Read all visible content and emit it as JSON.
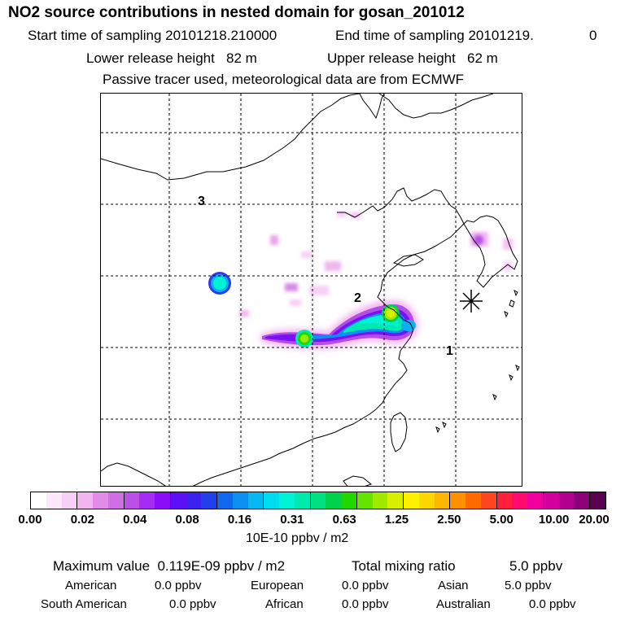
{
  "header": {
    "title": "NO2 source contributions in nested domain for gosan_201012",
    "start_label": "Start time of sampling 20101218.210000",
    "end_label": "End time of sampling 20101219.",
    "end_suffix": "0",
    "lower_label": "Lower release height   82 m",
    "upper_label": "Upper release height   62 m",
    "subtitle": "Passive tracer used, meteorological data are from ECMWF"
  },
  "chart_data": {
    "type": "heatmap",
    "title": "NO2 source contributions in nested domain for gosan_201012",
    "units": "10E-10 ppbv / m2",
    "color_levels": [
      "0.00",
      "0.02",
      "0.04",
      "0.08",
      "0.16",
      "0.31",
      "0.63",
      "1.25",
      "2.50",
      "5.00",
      "10.00",
      "20.00"
    ],
    "grid": true,
    "site_labels": [
      "3",
      "2",
      "1"
    ],
    "colors": [
      "#ffffff",
      "#fde7fb",
      "#f8cff6",
      "#f2b5f0",
      "#e28ce8",
      "#d06ee6",
      "#bb4fe8",
      "#a52cf2",
      "#8a0cf8",
      "#5d10f5",
      "#3b22f0",
      "#1f40ec",
      "#0f68ee",
      "#0b90f2",
      "#08b8f2",
      "#00dcf0",
      "#00f2d6",
      "#00eab0",
      "#00e080",
      "#00d24c",
      "#20d800",
      "#64e400",
      "#a0ea00",
      "#d8f000",
      "#fff000",
      "#ffd600",
      "#ffb800",
      "#ff9000",
      "#ff6a00",
      "#ff4420",
      "#ff1e3c",
      "#ff0a6e",
      "#f0009c",
      "#d4009e",
      "#b4008e",
      "#8c007a",
      "#5a0050"
    ]
  },
  "summary": {
    "max_label": "Maximum value  0.119E-09 ppbv / m2",
    "total_label": "Total mixing ratio",
    "total_value": "5.0 ppbv",
    "regions": [
      {
        "name": "American",
        "value": "0.0 ppbv"
      },
      {
        "name": "European",
        "value": "0.0 ppbv"
      },
      {
        "name": "Asian",
        "value": "5.0 ppbv"
      },
      {
        "name": "South American",
        "value": "0.0 ppbv"
      },
      {
        "name": "African",
        "value": "0.0 ppbv"
      },
      {
        "name": "Australian",
        "value": "0.0 ppbv"
      }
    ]
  }
}
